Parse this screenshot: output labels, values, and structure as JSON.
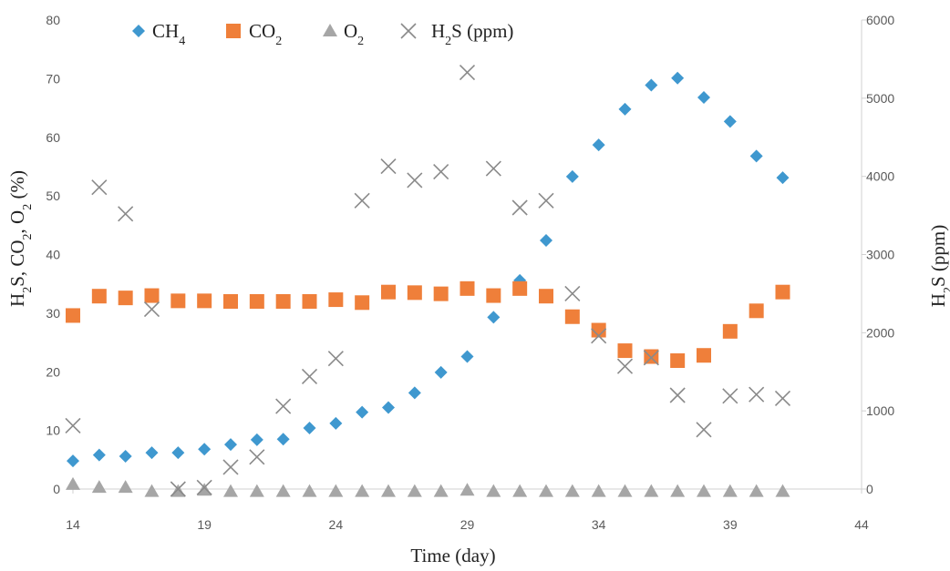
{
  "chart_data": {
    "type": "scatter",
    "xlabel": "Time (day)",
    "ylabel_left": {
      "prefix": "H",
      "parts": [
        [
          "2",
          "S, CO"
        ],
        [
          "2",
          ", O"
        ],
        [
          "2",
          " (%)"
        ]
      ]
    },
    "ylabel_right": {
      "prefix": "H",
      "parts": [
        [
          "2",
          "S (ppm)"
        ]
      ]
    },
    "x_ticks": [
      14,
      19,
      24,
      29,
      34,
      39,
      44
    ],
    "y_left_ticks": [
      0,
      10,
      20,
      30,
      40,
      50,
      60,
      70,
      80
    ],
    "y_right_ticks": [
      0,
      1000,
      2000,
      3000,
      4000,
      5000,
      6000
    ],
    "xlim": [
      14,
      44
    ],
    "ylim_left": [
      0,
      80
    ],
    "ylim_right": [
      0,
      6000
    ],
    "grid": false,
    "legend_position": "top",
    "series": [
      {
        "name": "CH4",
        "legend_label": {
          "base": "CH",
          "sub": "4"
        },
        "axis": "left",
        "marker": "diamond",
        "color": "#3f98cf",
        "x": [
          14,
          15,
          16,
          17,
          18,
          19,
          20,
          21,
          22,
          23,
          24,
          25,
          26,
          27,
          28,
          29,
          30,
          31,
          32,
          33,
          34,
          35,
          36,
          37,
          38,
          39,
          40,
          41
        ],
        "values": [
          4.8,
          5.8,
          5.6,
          6.2,
          6.2,
          6.8,
          7.6,
          8.4,
          8.5,
          10.4,
          11.2,
          13.1,
          13.9,
          16.4,
          19.9,
          22.6,
          29.3,
          35.6,
          42.4,
          53.3,
          58.7,
          64.8,
          68.9,
          70.1,
          66.8,
          62.7,
          56.8,
          53.1
        ]
      },
      {
        "name": "CO2",
        "legend_label": {
          "base": "CO",
          "sub": "2"
        },
        "axis": "left",
        "marker": "square",
        "color": "#ef7f3a",
        "x": [
          14,
          15,
          16,
          17,
          18,
          19,
          20,
          21,
          22,
          23,
          24,
          25,
          26,
          27,
          28,
          29,
          30,
          31,
          32,
          33,
          34,
          35,
          36,
          37,
          38,
          39,
          40,
          41
        ],
        "values": [
          29.6,
          32.9,
          32.6,
          33.0,
          32.1,
          32.1,
          32.0,
          32.0,
          32.0,
          32.0,
          32.3,
          31.8,
          33.6,
          33.5,
          33.3,
          34.2,
          33.0,
          34.2,
          32.9,
          29.4,
          27.1,
          23.6,
          22.6,
          21.9,
          22.8,
          26.9,
          30.4,
          33.6
        ]
      },
      {
        "name": "O2",
        "legend_label": {
          "base": "O",
          "sub": "2"
        },
        "axis": "left",
        "marker": "triangle",
        "color": "#a6a6a6",
        "x": [
          14,
          15,
          16,
          17,
          18,
          19,
          20,
          21,
          22,
          23,
          24,
          25,
          26,
          27,
          28,
          29,
          30,
          31,
          32,
          33,
          34,
          35,
          36,
          37,
          38,
          39,
          40,
          41
        ],
        "values": [
          0.8,
          0.3,
          0.3,
          -0.4,
          -0.4,
          -0.2,
          -0.4,
          -0.4,
          -0.4,
          -0.4,
          -0.4,
          -0.4,
          -0.4,
          -0.4,
          -0.4,
          -0.2,
          -0.4,
          -0.4,
          -0.4,
          -0.4,
          -0.4,
          -0.4,
          -0.4,
          -0.4,
          -0.4,
          -0.4,
          -0.4,
          -0.4
        ]
      },
      {
        "name": "H2S (ppm)",
        "legend_label": {
          "base": "H",
          "sub": "2",
          "tail": "S (ppm)"
        },
        "axis": "right",
        "marker": "x",
        "color": "#8a8a8a",
        "x": [
          14,
          15,
          16,
          17,
          18,
          19,
          20,
          21,
          22,
          23,
          24,
          25,
          26,
          27,
          28,
          29,
          30,
          31,
          32,
          33,
          34,
          35,
          36,
          37,
          38,
          39,
          40,
          41
        ],
        "values": [
          810,
          3860,
          3520,
          2300,
          0,
          20,
          280,
          410,
          1060,
          1440,
          1670,
          3690,
          4130,
          3950,
          4060,
          5330,
          4100,
          3600,
          3690,
          2500,
          1960,
          1570,
          1680,
          1200,
          760,
          1190,
          1210,
          1160
        ]
      }
    ]
  }
}
